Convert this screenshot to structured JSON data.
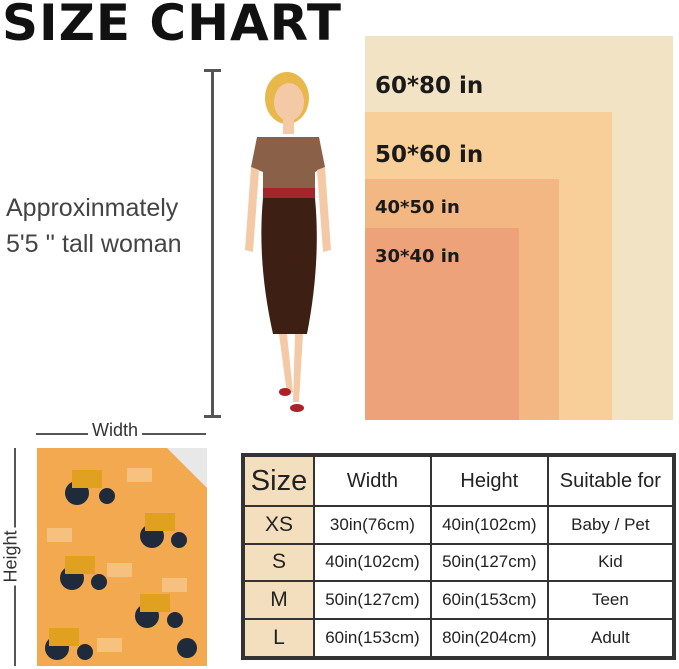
{
  "title": "SIZE CHART",
  "description": {
    "line1": "Approxinmately",
    "line2": "5'5 '' tall woman"
  },
  "sizes_visual": [
    {
      "label": "60*80 in",
      "color": "#f3e3c5"
    },
    {
      "label": "50*60 in",
      "color": "#f8cf98"
    },
    {
      "label": "40*50 in",
      "color": "#f3b783"
    },
    {
      "label": "30*40 in",
      "color": "#eea27a"
    }
  ],
  "blanket": {
    "width_label": "Width",
    "height_label": "Height",
    "color": "#f2a950"
  },
  "table": {
    "headers": [
      "Size",
      "Width",
      "Height",
      "Suitable for"
    ],
    "rows": [
      [
        "XS",
        "30in(76cm)",
        "40in(102cm)",
        "Baby / Pet"
      ],
      [
        "S",
        "40in(102cm)",
        "50in(127cm)",
        "Kid"
      ],
      [
        "M",
        "50in(127cm)",
        "60in(153cm)",
        "Teen"
      ],
      [
        "L",
        "60in(153cm)",
        "80in(204cm)",
        "Adult"
      ]
    ]
  }
}
